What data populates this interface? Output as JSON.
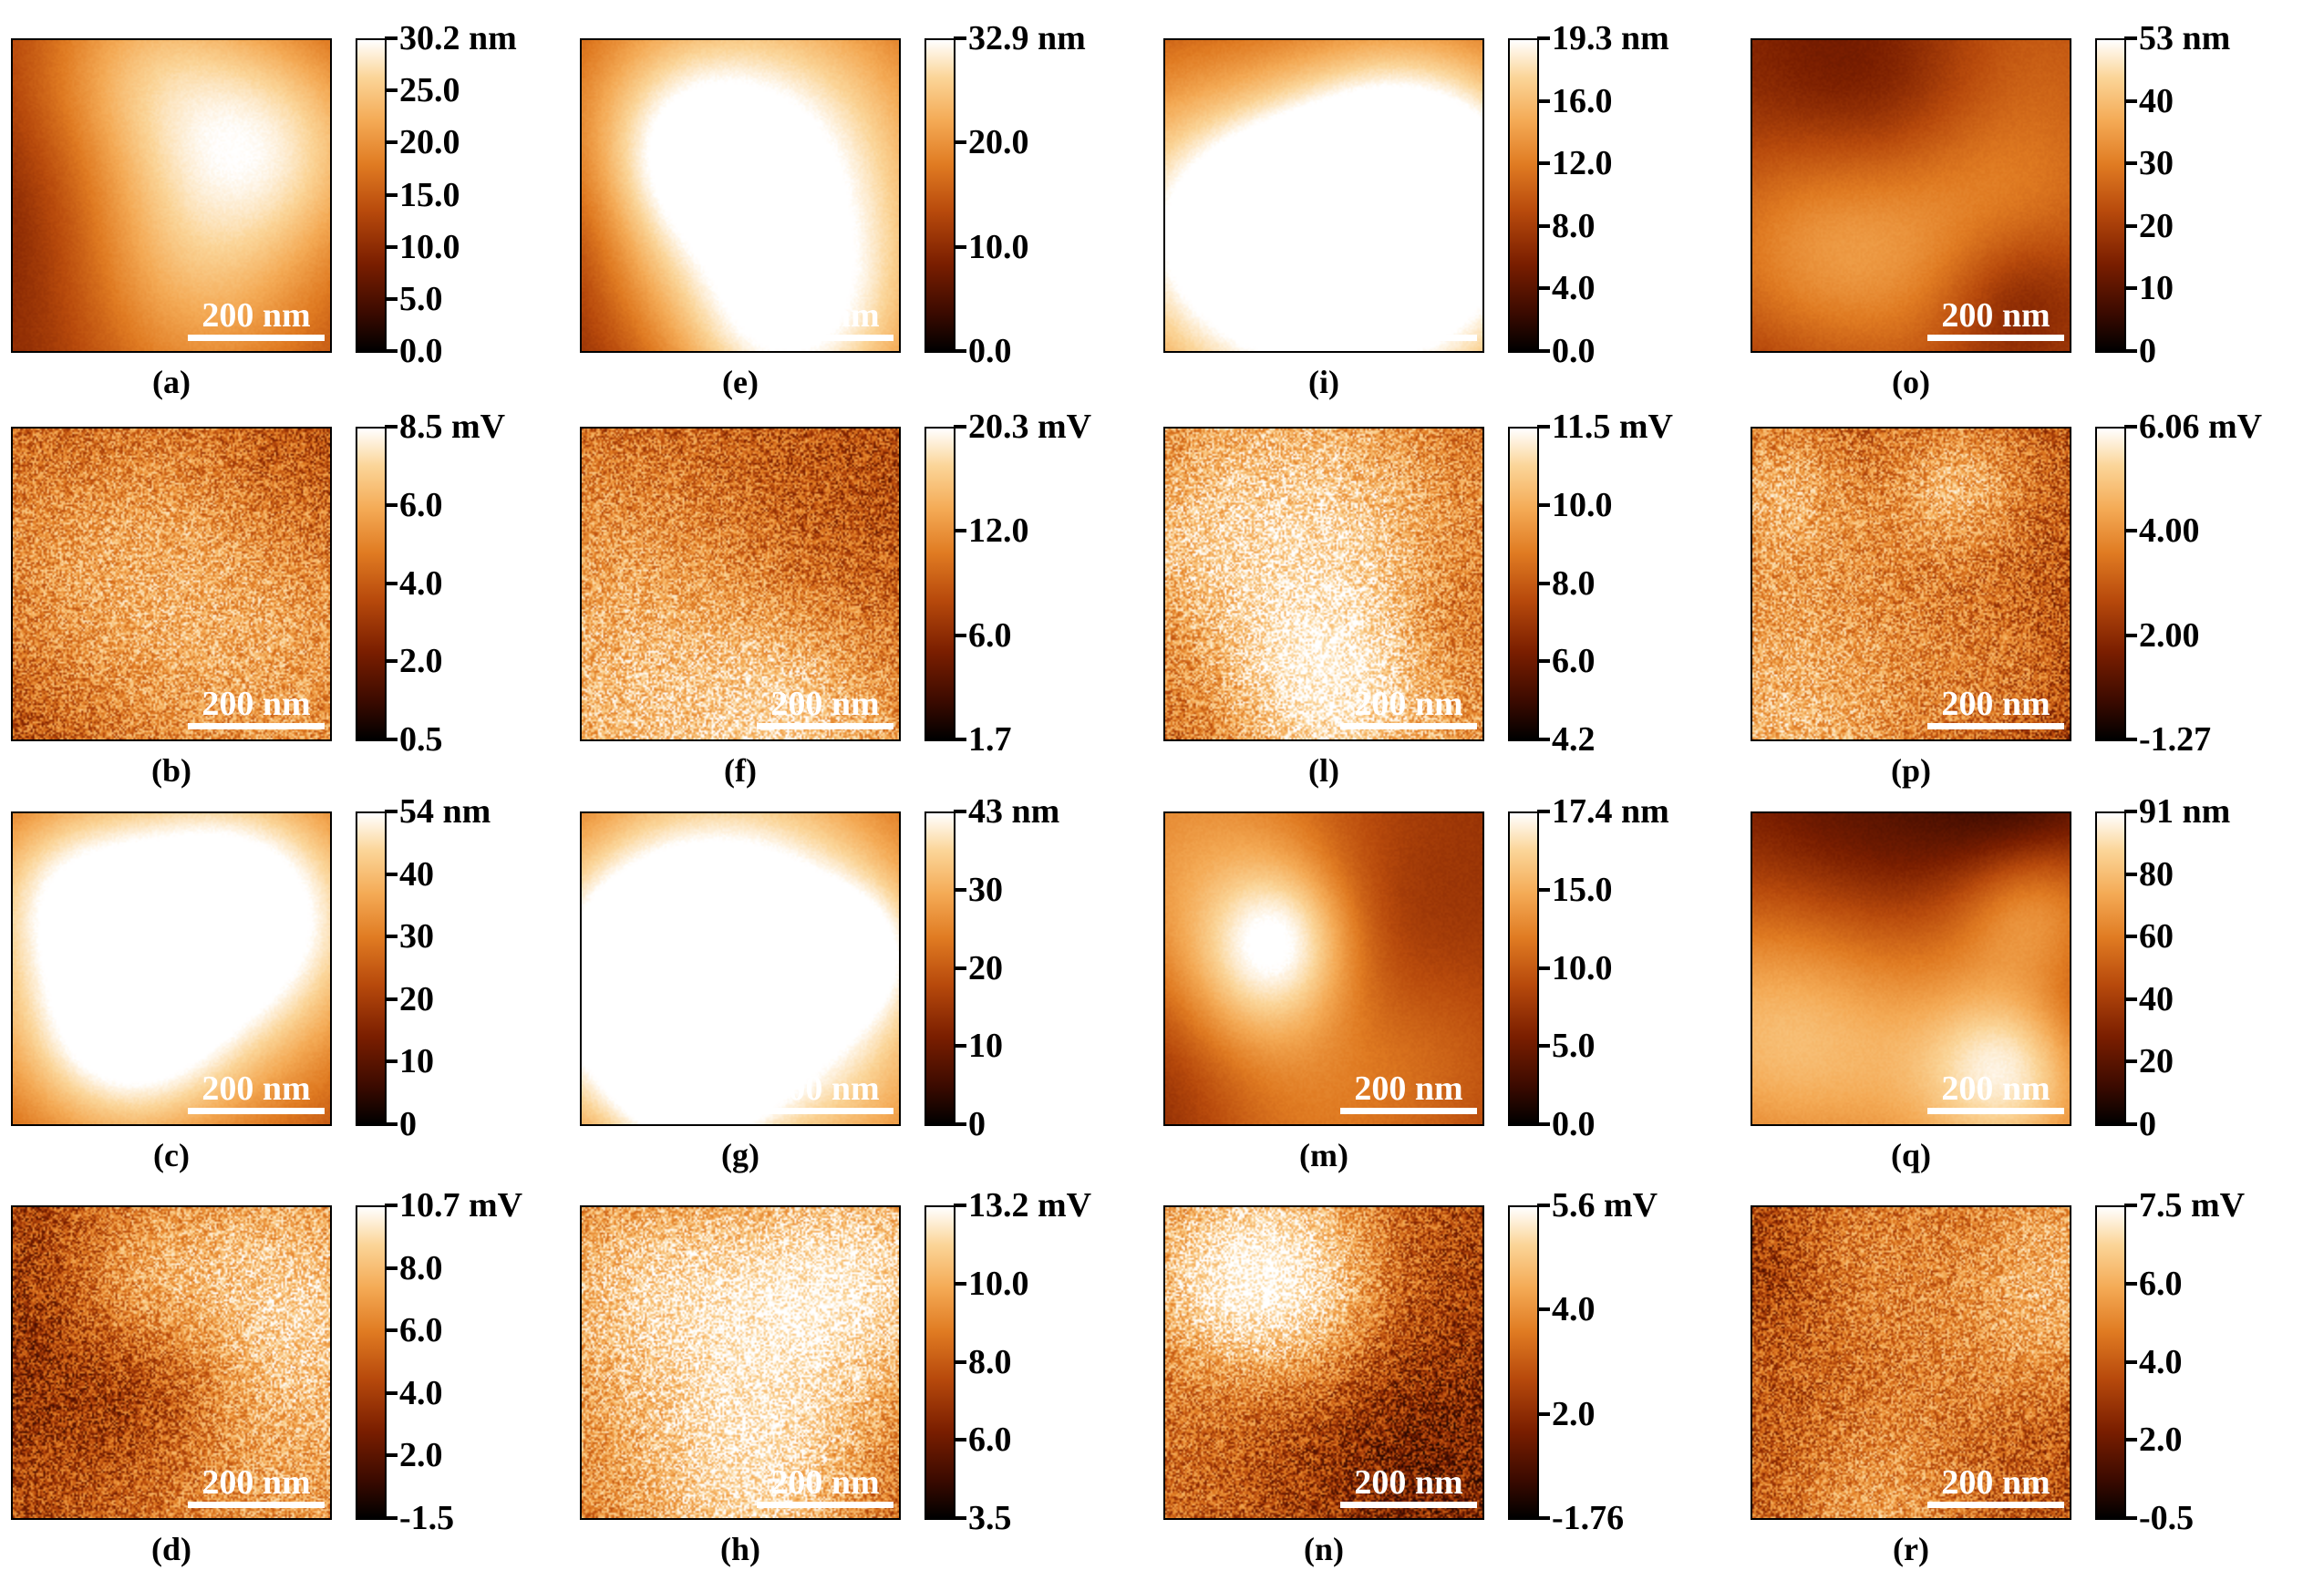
{
  "scale_bar_label": "200 nm",
  "palette": [
    "#000000",
    "#3a0a00",
    "#7a1e00",
    "#b84a0c",
    "#e07b22",
    "#f4aa55",
    "#fbd598",
    "#ffffff"
  ],
  "panels": [
    {
      "id": "a",
      "label": "(a)",
      "kind": "height",
      "ticks": [
        "30.2 nm",
        "25.0",
        "20.0",
        "15.0",
        "10.0",
        "5.0",
        "0.0"
      ]
    },
    {
      "id": "e",
      "label": "(e)",
      "kind": "height",
      "ticks": [
        "32.9 nm",
        "20.0",
        "10.0",
        "0.0"
      ]
    },
    {
      "id": "i",
      "label": "(i)",
      "kind": "height",
      "ticks": [
        "19.3 nm",
        "16.0",
        "12.0",
        "8.0",
        "4.0",
        "0.0"
      ]
    },
    {
      "id": "o",
      "label": "(o)",
      "kind": "height",
      "ticks": [
        "53 nm",
        "40",
        "30",
        "20",
        "10",
        "0"
      ]
    },
    {
      "id": "b",
      "label": "(b)",
      "kind": "potential",
      "ticks": [
        "8.5 mV",
        "6.0",
        "4.0",
        "2.0",
        "0.5"
      ]
    },
    {
      "id": "f",
      "label": "(f)",
      "kind": "potential",
      "ticks": [
        "20.3 mV",
        "12.0",
        "6.0",
        "1.7"
      ]
    },
    {
      "id": "l",
      "label": "(l)",
      "kind": "potential",
      "ticks": [
        "11.5 mV",
        "10.0",
        "8.0",
        "6.0",
        "4.2"
      ]
    },
    {
      "id": "p",
      "label": "(p)",
      "kind": "potential",
      "ticks": [
        "6.06 mV",
        "4.00",
        "2.00",
        "-1.27"
      ]
    },
    {
      "id": "c",
      "label": "(c)",
      "kind": "height",
      "ticks": [
        "54 nm",
        "40",
        "30",
        "20",
        "10",
        "0"
      ]
    },
    {
      "id": "g",
      "label": "(g)",
      "kind": "height",
      "ticks": [
        "43 nm",
        "30",
        "20",
        "10",
        "0"
      ]
    },
    {
      "id": "m",
      "label": "(m)",
      "kind": "height",
      "ticks": [
        "17.4 nm",
        "15.0",
        "10.0",
        "5.0",
        "0.0"
      ]
    },
    {
      "id": "q",
      "label": "(q)",
      "kind": "height",
      "ticks": [
        "91 nm",
        "80",
        "60",
        "40",
        "20",
        "0"
      ]
    },
    {
      "id": "d",
      "label": "(d)",
      "kind": "potential",
      "ticks": [
        "10.7 mV",
        "8.0",
        "6.0",
        "4.0",
        "2.0",
        "-1.5"
      ]
    },
    {
      "id": "h",
      "label": "(h)",
      "kind": "potential",
      "ticks": [
        "13.2 mV",
        "10.0",
        "8.0",
        "6.0",
        "3.5"
      ]
    },
    {
      "id": "n",
      "label": "(n)",
      "kind": "potential",
      "ticks": [
        "5.6 mV",
        "4.0",
        "2.0",
        "-1.76"
      ]
    },
    {
      "id": "r",
      "label": "(r)",
      "kind": "potential",
      "ticks": [
        "7.5 mV",
        "6.0",
        "4.0",
        "2.0",
        "-0.5"
      ]
    }
  ]
}
